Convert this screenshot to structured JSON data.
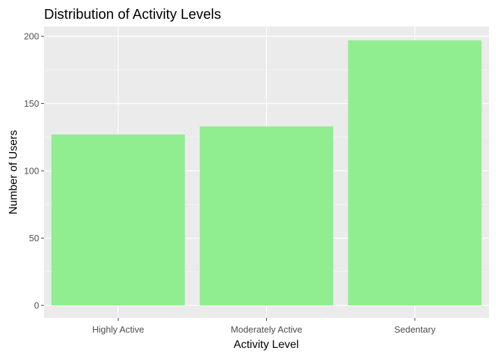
{
  "chart_data": {
    "type": "bar",
    "title": "Distribution of Activity Levels",
    "xlabel": "Activity Level",
    "ylabel": "Number of Users",
    "categories": [
      "Highly Active",
      "Moderately Active",
      "Sedentary"
    ],
    "values": [
      127,
      133,
      197
    ],
    "ylim": [
      0,
      210
    ],
    "y_ticks": [
      0,
      50,
      100,
      150,
      200
    ],
    "y_tick_labels": [
      "0",
      "50",
      "100",
      "150",
      "200"
    ],
    "grid": true,
    "legend": "none",
    "colors": {
      "bar_fill": "#90EE90",
      "panel_background": "#EBEBEB",
      "grid_major": "#FFFFFF",
      "grid_minor": "#F5F5F5",
      "tick_text": "#4D4D4D",
      "tick_mark": "#333333"
    }
  }
}
